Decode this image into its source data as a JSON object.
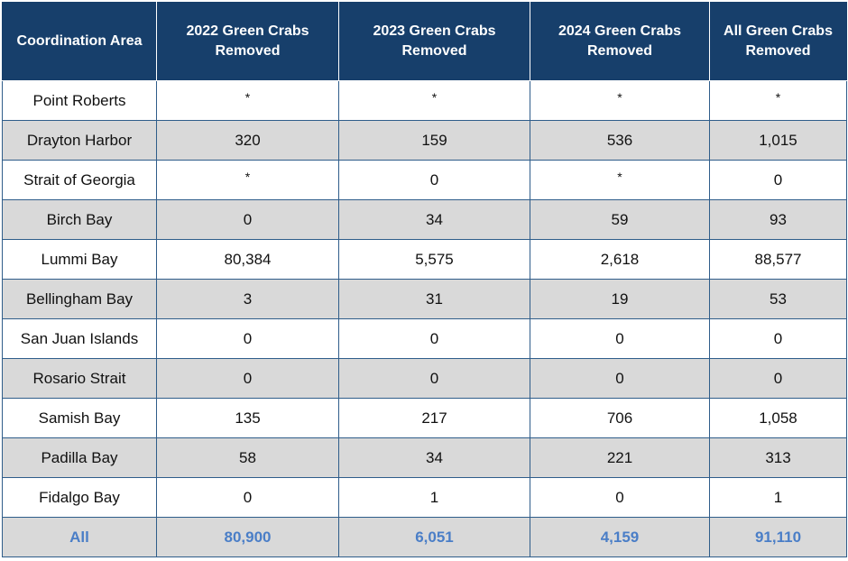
{
  "table": {
    "headers": [
      "Coordination Area",
      "2022 Green Crabs Removed",
      "2023 Green Crabs Removed",
      "2024 Green Crabs Removed",
      "All Green Crabs Removed"
    ],
    "rows": [
      [
        "Point Roberts",
        "*",
        "*",
        "*",
        "*"
      ],
      [
        "Drayton Harbor",
        "320",
        "159",
        "536",
        "1,015"
      ],
      [
        "Strait of Georgia",
        "*",
        "0",
        "*",
        "0"
      ],
      [
        "Birch Bay",
        "0",
        "34",
        "59",
        "93"
      ],
      [
        "Lummi Bay",
        "80,384",
        "5,575",
        "2,618",
        "88,577"
      ],
      [
        "Bellingham Bay",
        "3",
        "31",
        "19",
        "53"
      ],
      [
        "San Juan Islands",
        "0",
        "0",
        "0",
        "0"
      ],
      [
        "Rosario Strait",
        "0",
        "0",
        "0",
        "0"
      ],
      [
        "Samish Bay",
        "135",
        "217",
        "706",
        "1,058"
      ],
      [
        "Padilla Bay",
        "58",
        "34",
        "221",
        "313"
      ],
      [
        "Fidalgo Bay",
        "0",
        "1",
        "0",
        "1"
      ]
    ],
    "total_row": [
      "All",
      "80,900",
      "6,051",
      "4,159",
      "91,110"
    ]
  },
  "colors": {
    "header_bg": "#173f6b",
    "header_text": "#ffffff",
    "row_shade": "#d9d9d9",
    "total_text": "#4a7ec7",
    "grid_line": "#2f5d8a"
  }
}
